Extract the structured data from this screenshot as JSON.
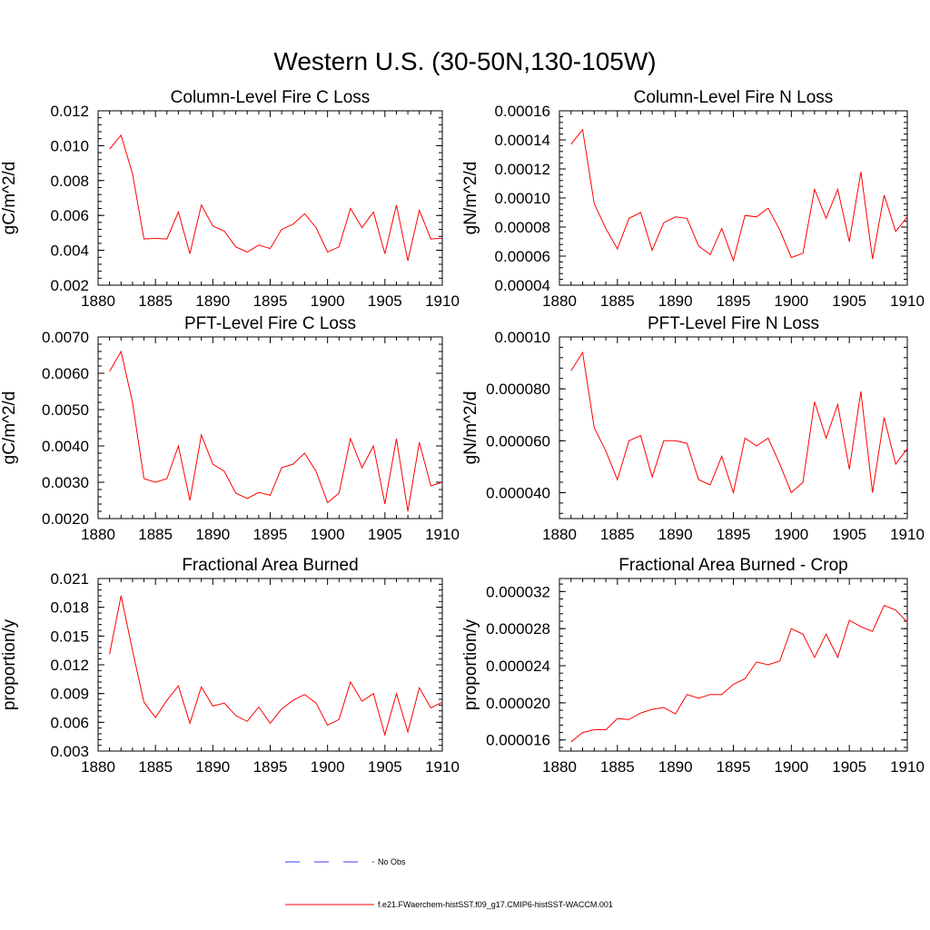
{
  "title": "Western U.S. (30-50N,130-105W)",
  "legend": {
    "obs_label": "No Obs",
    "model_label": "f.e21.FWaerchem-histSST.f09_g17.CMIP6-histSST-WACCM.001",
    "obs_color": "#3b3bff",
    "model_color": "#ff0000"
  },
  "chart_data": [
    {
      "type": "line",
      "title": "Column-Level Fire C Loss",
      "xlabel": "",
      "ylabel": "gC/m^2/d",
      "xlim": [
        1880,
        1910
      ],
      "ylim": [
        0.002,
        0.012
      ],
      "x_ticks": [
        1880,
        1885,
        1890,
        1895,
        1900,
        1905,
        1910
      ],
      "x_tick_labels": [
        "1880",
        "1885",
        "1890",
        "1895",
        "1900",
        "1905",
        "1910"
      ],
      "y_ticks": [
        0.002,
        0.004,
        0.006,
        0.008,
        0.01,
        0.012
      ],
      "y_tick_labels": [
        "0.002",
        "0.004",
        "0.006",
        "0.008",
        "0.010",
        "0.012"
      ],
      "series": [
        {
          "color": "#ff0000",
          "x": [
            1881,
            1882,
            1883,
            1884,
            1885,
            1886,
            1887,
            1888,
            1889,
            1890,
            1891,
            1892,
            1893,
            1894,
            1895,
            1896,
            1897,
            1898,
            1899,
            1900,
            1901,
            1902,
            1903,
            1904,
            1905,
            1906,
            1907,
            1908,
            1909,
            1910
          ],
          "y": [
            0.0098,
            0.0106,
            0.0084,
            0.00465,
            0.00468,
            0.00465,
            0.0062,
            0.0038,
            0.0066,
            0.0054,
            0.0051,
            0.0042,
            0.0039,
            0.0043,
            0.0041,
            0.0052,
            0.0055,
            0.0061,
            0.0053,
            0.0039,
            0.0042,
            0.0064,
            0.0053,
            0.0062,
            0.0038,
            0.0066,
            0.0034,
            0.0063,
            0.00465,
            0.0047
          ]
        }
      ]
    },
    {
      "type": "line",
      "title": "Column-Level Fire N Loss",
      "xlabel": "",
      "ylabel": "gN/m^2/d",
      "xlim": [
        1880,
        1910
      ],
      "ylim": [
        4e-05,
        0.00016
      ],
      "x_ticks": [
        1880,
        1885,
        1890,
        1895,
        1900,
        1905,
        1910
      ],
      "x_tick_labels": [
        "1880",
        "1885",
        "1890",
        "1895",
        "1900",
        "1905",
        "1910"
      ],
      "y_ticks": [
        4e-05,
        6e-05,
        8e-05,
        0.0001,
        0.00012,
        0.00014,
        0.00016
      ],
      "y_tick_labels": [
        "0.00004",
        "0.00006",
        "0.00008",
        "0.00010",
        "0.00012",
        "0.00014",
        "0.00016"
      ],
      "series": [
        {
          "color": "#ff0000",
          "x": [
            1881,
            1882,
            1883,
            1884,
            1885,
            1886,
            1887,
            1888,
            1889,
            1890,
            1891,
            1892,
            1893,
            1894,
            1895,
            1896,
            1897,
            1898,
            1899,
            1900,
            1901,
            1902,
            1903,
            1904,
            1905,
            1906,
            1907,
            1908,
            1909,
            1910
          ],
          "y": [
            0.000137,
            0.000147,
            9.6e-05,
            7.9e-05,
            6.5e-05,
            8.6e-05,
            9e-05,
            6.4e-05,
            8.3e-05,
            8.7e-05,
            8.6e-05,
            6.7e-05,
            6.1e-05,
            7.9e-05,
            5.7e-05,
            8.8e-05,
            8.7e-05,
            9.3e-05,
            7.8e-05,
            5.9e-05,
            6.2e-05,
            0.000106,
            8.6e-05,
            0.000106,
            7e-05,
            0.000118,
            5.8e-05,
            0.000102,
            7.7e-05,
            8.7e-05
          ]
        }
      ]
    },
    {
      "type": "line",
      "title": "PFT-Level Fire C Loss",
      "xlabel": "",
      "ylabel": "gC/m^2/d",
      "xlim": [
        1880,
        1910
      ],
      "ylim": [
        0.002,
        0.007
      ],
      "x_ticks": [
        1880,
        1885,
        1890,
        1895,
        1900,
        1905,
        1910
      ],
      "x_tick_labels": [
        "1880",
        "1885",
        "1890",
        "1895",
        "1900",
        "1905",
        "1910"
      ],
      "y_ticks": [
        0.002,
        0.003,
        0.004,
        0.005,
        0.006,
        0.007
      ],
      "y_tick_labels": [
        "0.0020",
        "0.0030",
        "0.0040",
        "0.0050",
        "0.0060",
        "0.0070"
      ],
      "series": [
        {
          "color": "#ff0000",
          "x": [
            1881,
            1882,
            1883,
            1884,
            1885,
            1886,
            1887,
            1888,
            1889,
            1890,
            1891,
            1892,
            1893,
            1894,
            1895,
            1896,
            1897,
            1898,
            1899,
            1900,
            1901,
            1902,
            1903,
            1904,
            1905,
            1906,
            1907,
            1908,
            1909,
            1910
          ],
          "y": [
            0.00605,
            0.0066,
            0.0052,
            0.0031,
            0.003,
            0.0031,
            0.004,
            0.0025,
            0.0043,
            0.0035,
            0.0033,
            0.0027,
            0.00255,
            0.00272,
            0.00264,
            0.0034,
            0.0035,
            0.0038,
            0.0033,
            0.00244,
            0.0027,
            0.0042,
            0.0034,
            0.004,
            0.0024,
            0.0042,
            0.0022,
            0.0041,
            0.0029,
            0.003
          ]
        }
      ]
    },
    {
      "type": "line",
      "title": "PFT-Level Fire N Loss",
      "xlabel": "",
      "ylabel": "gN/m^2/d",
      "xlim": [
        1880,
        1910
      ],
      "ylim": [
        3e-05,
        0.0001
      ],
      "x_ticks": [
        1880,
        1885,
        1890,
        1895,
        1900,
        1905,
        1910
      ],
      "x_tick_labels": [
        "1880",
        "1885",
        "1890",
        "1895",
        "1900",
        "1905",
        "1910"
      ],
      "y_ticks": [
        4e-05,
        6e-05,
        8e-05,
        0.0001
      ],
      "y_tick_labels": [
        "0.000040",
        "0.000060",
        "0.000080",
        "0.00010"
      ],
      "series": [
        {
          "color": "#ff0000",
          "x": [
            1881,
            1882,
            1883,
            1884,
            1885,
            1886,
            1887,
            1888,
            1889,
            1890,
            1891,
            1892,
            1893,
            1894,
            1895,
            1896,
            1897,
            1898,
            1899,
            1900,
            1901,
            1902,
            1903,
            1904,
            1905,
            1906,
            1907,
            1908,
            1909,
            1910
          ],
          "y": [
            8.7e-05,
            9.4e-05,
            6.5e-05,
            5.6e-05,
            4.5e-05,
            6e-05,
            6.2e-05,
            4.6e-05,
            6e-05,
            6e-05,
            5.9e-05,
            4.5e-05,
            4.3e-05,
            5.4e-05,
            4e-05,
            6.1e-05,
            5.8e-05,
            6.1e-05,
            5.1e-05,
            4e-05,
            4.4e-05,
            7.5e-05,
            6.1e-05,
            7.4e-05,
            4.9e-05,
            7.9e-05,
            4e-05,
            6.9e-05,
            5.1e-05,
            5.7e-05
          ]
        }
      ]
    },
    {
      "type": "line",
      "title": "Fractional Area Burned",
      "xlabel": "",
      "ylabel": "proportion/y",
      "xlim": [
        1880,
        1910
      ],
      "ylim": [
        0.003,
        0.021
      ],
      "x_ticks": [
        1880,
        1885,
        1890,
        1895,
        1900,
        1905,
        1910
      ],
      "x_tick_labels": [
        "1880",
        "1885",
        "1890",
        "1895",
        "1900",
        "1905",
        "1910"
      ],
      "y_ticks": [
        0.003,
        0.006,
        0.009,
        0.012,
        0.015,
        0.018,
        0.021
      ],
      "y_tick_labels": [
        "0.003",
        "0.006",
        "0.009",
        "0.012",
        "0.015",
        "0.018",
        "0.021"
      ],
      "series": [
        {
          "color": "#ff0000",
          "x": [
            1881,
            1882,
            1883,
            1884,
            1885,
            1886,
            1887,
            1888,
            1889,
            1890,
            1891,
            1892,
            1893,
            1894,
            1895,
            1896,
            1897,
            1898,
            1899,
            1900,
            1901,
            1902,
            1903,
            1904,
            1905,
            1906,
            1907,
            1908,
            1909,
            1910
          ],
          "y": [
            0.0131,
            0.0192,
            0.0135,
            0.0081,
            0.0065,
            0.0083,
            0.0098,
            0.0059,
            0.0097,
            0.0077,
            0.008,
            0.0067,
            0.0061,
            0.0076,
            0.0059,
            0.0074,
            0.0083,
            0.0089,
            0.008,
            0.0057,
            0.0063,
            0.0102,
            0.0082,
            0.009,
            0.0047,
            0.009,
            0.005,
            0.0096,
            0.0075,
            0.0081
          ]
        }
      ]
    },
    {
      "type": "line",
      "title": "Fractional Area Burned - Crop",
      "xlabel": "",
      "ylabel": "proportion/y",
      "xlim": [
        1880,
        1910
      ],
      "ylim": [
        1.48e-05,
        3.34e-05
      ],
      "x_ticks": [
        1880,
        1885,
        1890,
        1895,
        1900,
        1905,
        1910
      ],
      "x_tick_labels": [
        "1880",
        "1885",
        "1890",
        "1895",
        "1900",
        "1905",
        "1910"
      ],
      "y_ticks": [
        1.6e-05,
        2e-05,
        2.4e-05,
        2.8e-05,
        3.2e-05
      ],
      "y_tick_labels": [
        "0.000016",
        "0.000020",
        "0.000024",
        "0.000028",
        "0.000032"
      ],
      "series": [
        {
          "color": "#ff0000",
          "x": [
            1881,
            1882,
            1883,
            1884,
            1885,
            1886,
            1887,
            1888,
            1889,
            1890,
            1891,
            1892,
            1893,
            1894,
            1895,
            1896,
            1897,
            1898,
            1899,
            1900,
            1901,
            1902,
            1903,
            1904,
            1905,
            1906,
            1907,
            1908,
            1909,
            1910
          ],
          "y": [
            1.58e-05,
            1.68e-05,
            1.71e-05,
            1.71e-05,
            1.83e-05,
            1.82e-05,
            1.89e-05,
            1.93e-05,
            1.95e-05,
            1.88e-05,
            2.09e-05,
            2.05e-05,
            2.09e-05,
            2.09e-05,
            2.2e-05,
            2.26e-05,
            2.44e-05,
            2.41e-05,
            2.45e-05,
            2.8e-05,
            2.74e-05,
            2.49e-05,
            2.74e-05,
            2.49e-05,
            2.89e-05,
            2.82e-05,
            2.77e-05,
            3.05e-05,
            3e-05,
            2.87e-05
          ]
        }
      ]
    }
  ]
}
